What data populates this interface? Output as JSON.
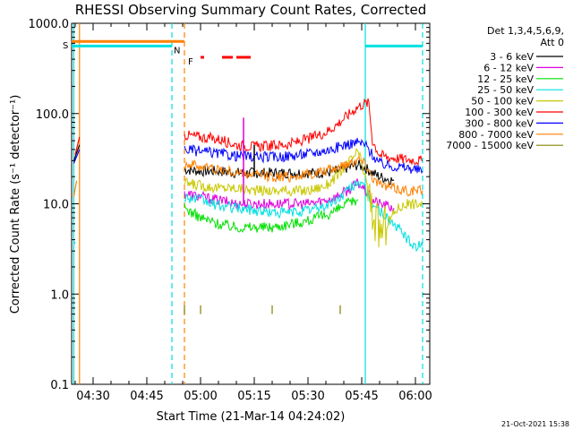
{
  "chart_data": {
    "type": "line",
    "title": "RHESSI Observing Summary Count Rates, Corrected",
    "xlabel": "Start Time (21-Mar-14 04:24:02)",
    "ylabel": "Corrected Count Rate (s⁻¹ detector⁻¹)",
    "y_scale": "log",
    "ylim": [
      0.1,
      1000.0
    ],
    "yticks": [
      {
        "value": 0.1,
        "label": "0.1"
      },
      {
        "value": 1.0,
        "label": "1.0"
      },
      {
        "value": 10.0,
        "label": "10.0"
      },
      {
        "value": 100.0,
        "label": "100.0"
      },
      {
        "value": 1000.0,
        "label": "1000.0"
      }
    ],
    "xlim": [
      264,
      364
    ],
    "xticks": [
      {
        "value": 270,
        "label": "04:30"
      },
      {
        "value": 285,
        "label": "04:45"
      },
      {
        "value": 300,
        "label": "05:00"
      },
      {
        "value": 315,
        "label": "05:15"
      },
      {
        "value": 330,
        "label": "05:30"
      },
      {
        "value": 345,
        "label": "05:45"
      },
      {
        "value": 360,
        "label": "06:00"
      }
    ],
    "x_units": "minutes after 00:00 UT",
    "legend_header": [
      "Det 1,3,4,5,6,9,",
      "Att 0"
    ],
    "legend_position": "right",
    "series": [
      {
        "name": "3 - 6 keV",
        "color": "#000000",
        "x": [
          295.5,
          300,
          305,
          310,
          315,
          320,
          325,
          330,
          335,
          338,
          341,
          344,
          346,
          348,
          350,
          354
        ],
        "y": [
          24,
          23,
          23,
          22,
          22,
          22,
          22,
          22,
          22,
          23,
          25,
          27,
          25,
          22,
          20,
          18
        ]
      },
      {
        "name": "6 - 12 keV",
        "color": "#e000e0",
        "x": [
          295.5,
          300,
          305,
          310,
          315,
          320,
          325,
          330,
          335,
          338,
          341,
          344,
          346,
          348,
          350,
          354
        ],
        "y": [
          13,
          12,
          11,
          10,
          10,
          10,
          10,
          10,
          11,
          12,
          14,
          17,
          14,
          11,
          10,
          9
        ]
      },
      {
        "name": "12 - 25 keV",
        "color": "#00e000",
        "x": [
          295.5,
          300,
          305,
          310,
          315,
          320,
          325,
          330,
          335,
          338,
          341,
          344
        ],
        "y": [
          9,
          7,
          6,
          5.5,
          5.5,
          5.5,
          6,
          6.5,
          7.5,
          8.5,
          10,
          11
        ]
      },
      {
        "name": "25 - 50 keV",
        "color": "#00e0e0",
        "x": [
          295.5,
          300,
          305,
          310,
          315,
          320,
          325,
          330,
          335,
          338,
          341,
          344,
          346,
          348,
          352,
          357,
          358.5,
          360,
          362
        ],
        "y": [
          12,
          11,
          9.5,
          9,
          8.5,
          8,
          8,
          8.5,
          9.5,
          11,
          14,
          18,
          14,
          10,
          7,
          4.5,
          3.6,
          3.4,
          3.4
        ]
      },
      {
        "name": "50 - 100 keV",
        "color": "#c8c800",
        "x": [
          295.5,
          300,
          305,
          310,
          315,
          320,
          325,
          330,
          335,
          338,
          341,
          344,
          346,
          348,
          350,
          352,
          355,
          358,
          362
        ],
        "y": [
          17,
          16,
          15,
          15,
          14,
          14,
          14,
          14,
          16,
          20,
          28,
          38,
          20,
          8,
          5,
          6,
          9,
          10,
          10
        ]
      },
      {
        "name": "100 - 300 keV",
        "color": "#ff0000",
        "x": [
          295.5,
          300,
          305,
          310,
          315,
          320,
          325,
          330,
          335,
          338,
          341,
          344,
          346,
          347,
          348,
          350,
          352,
          355,
          358,
          362
        ],
        "y": [
          58,
          55,
          52,
          45,
          43,
          44,
          46,
          52,
          62,
          75,
          95,
          120,
          130,
          130,
          50,
          35,
          33,
          32,
          31,
          30
        ]
      },
      {
        "name": "300 - 800 keV",
        "color": "#0000ff",
        "x": [
          295.5,
          300,
          305,
          310,
          315,
          320,
          325,
          330,
          335,
          338,
          341,
          344,
          346,
          348,
          350,
          354,
          358,
          362
        ],
        "y": [
          40,
          38,
          36,
          34,
          33,
          33,
          34,
          36,
          39,
          42,
          46,
          48,
          45,
          35,
          28,
          26,
          25,
          23
        ]
      },
      {
        "name": "800 - 7000 keV",
        "color": "#ff8000",
        "x": [
          295.5,
          300,
          305,
          310,
          315,
          320,
          325,
          330,
          335,
          338,
          341,
          344,
          346,
          348,
          350,
          354,
          358,
          362
        ],
        "y": [
          28,
          26,
          24,
          22,
          21,
          20,
          20,
          21,
          23,
          25,
          28,
          32,
          28,
          20,
          16,
          15,
          14,
          14
        ]
      },
      {
        "name": "7000 - 15000 keV",
        "color": "#808000",
        "x": [
          295.5,
          295.5,
          300,
          300,
          320,
          320,
          339,
          339
        ],
        "y": [
          0.6,
          0.75,
          0.6,
          0.75,
          0.6,
          0.75,
          0.6,
          0.75
        ]
      }
    ],
    "pre_gap_series": [
      {
        "name": "3 - 6 keV",
        "color": "#000000",
        "x": [
          264.6,
          266.2
        ],
        "y": [
          30,
          45
        ]
      },
      {
        "name": "300 - 800 keV",
        "color": "#0000ff",
        "x": [
          264.6,
          266.2
        ],
        "y": [
          28,
          40
        ]
      },
      {
        "name": "100 - 300 keV",
        "color": "#ff0000",
        "x": [
          265.0,
          266.2
        ],
        "y": [
          35,
          55
        ]
      },
      {
        "name": "800 - 7000 keV",
        "color": "#ff8000",
        "x": [
          264.6,
          265.4
        ],
        "y": [
          12,
          18
        ]
      },
      {
        "name": "25 - 50 keV",
        "color": "#00e0e0",
        "x": [
          264.6,
          265.0
        ],
        "y": [
          3.5,
          3.8
        ]
      }
    ],
    "annotations": {
      "flags": [
        {
          "label": "S",
          "color": "#ff8000",
          "x_start": 264,
          "x_end": 295.5,
          "y": 630
        },
        {
          "label": "N",
          "color": "#00e0e0",
          "x_start": 264,
          "x_end": 292,
          "y": 560
        },
        {
          "label": "",
          "color": "#00e0e0",
          "x_start": 346,
          "x_end": 362,
          "y": 560
        },
        {
          "label": "F",
          "color": "#ff0000",
          "segments": [
            [
              300,
              301
            ],
            [
              306,
              309
            ],
            [
              310,
              314
            ]
          ],
          "y": 420
        }
      ],
      "vlines": [
        {
          "x": 264.6,
          "color": "#00e0e0",
          "style": "solid"
        },
        {
          "x": 266.2,
          "color": "#ff8000",
          "style": "solid"
        },
        {
          "x": 292,
          "color": "#00e0e0",
          "style": "dashed"
        },
        {
          "x": 295.5,
          "color": "#ff8000",
          "style": "dashed"
        },
        {
          "x": 346,
          "color": "#00e0e0",
          "style": "solid"
        },
        {
          "x": 362,
          "color": "#00e0e0",
          "style": "dashed"
        }
      ],
      "spikes": [
        {
          "color": "#e000e0",
          "x": 312,
          "y_low": 10,
          "y_high": 90
        },
        {
          "color": "#000000",
          "x": 315,
          "y_low": 20,
          "y_high": 45
        }
      ]
    },
    "footer": "21-Oct-2021 15:38"
  }
}
